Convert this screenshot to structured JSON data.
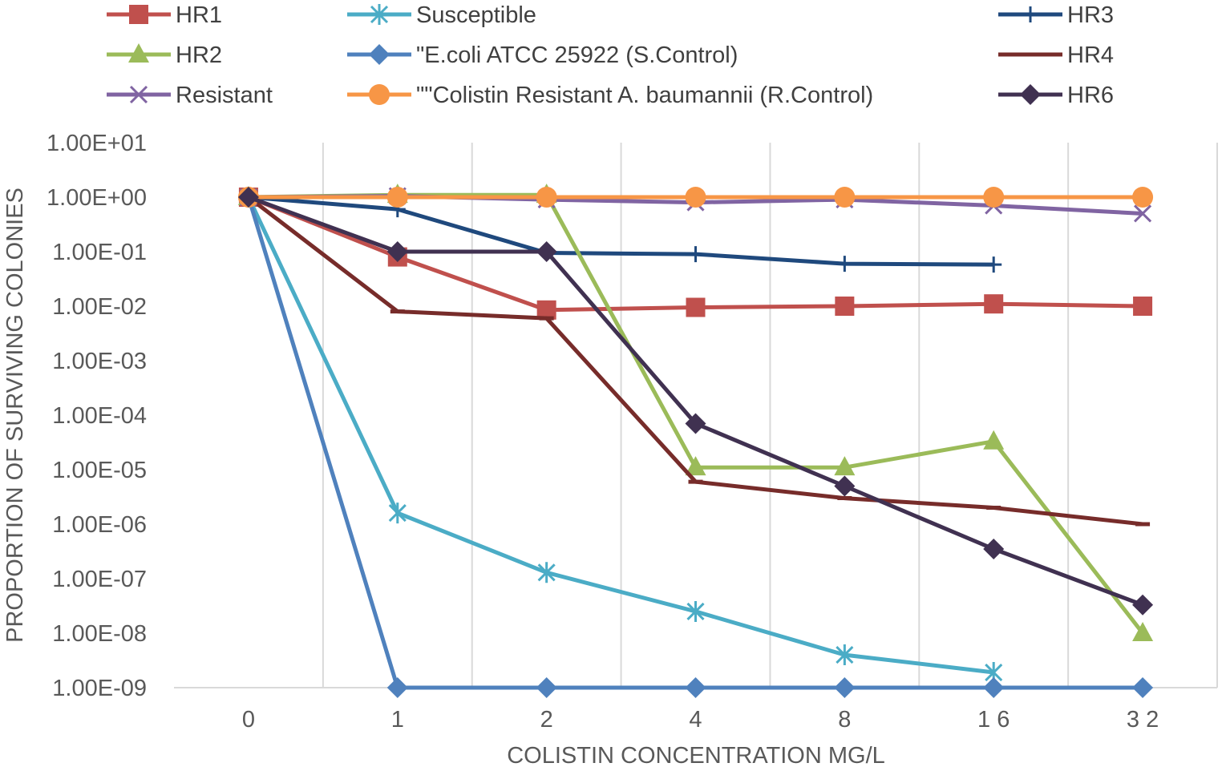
{
  "chart_data": {
    "type": "line",
    "title": "",
    "xlabel": "COLISTIN CONCENTRATION MG/L",
    "ylabel": "PROPORTION OF SURVIVING COLONIES",
    "categories": [
      "0",
      "1",
      "2",
      "4",
      "8",
      "1 6",
      "3 2"
    ],
    "y_scale": "log",
    "ylim": [
      1e-09,
      10
    ],
    "y_tick_labels": [
      "1.00E+01",
      "1.00E+00",
      "1.00E-01",
      "1.00E-02",
      "1.00E-03",
      "1.00E-04",
      "1.00E-05",
      "1.00E-06",
      "1.00E-07",
      "1.00E-08",
      "1.00E-09"
    ],
    "grid": "vertical",
    "legend_position": "top",
    "series": [
      {
        "name": "HR1",
        "color": "#C0504D",
        "marker": "square",
        "values": [
          1,
          0.08,
          0.0085,
          0.0095,
          0.01,
          0.011,
          0.01
        ]
      },
      {
        "name": "Susceptible",
        "color": "#4BACC6",
        "marker": "asterisk",
        "values": [
          1,
          1.6e-06,
          1.3e-07,
          2.5e-08,
          4e-09,
          1.9e-09,
          null
        ]
      },
      {
        "name": "HR3",
        "color": "#1F497D",
        "marker": "plus",
        "values": [
          1,
          0.6,
          0.095,
          0.09,
          0.06,
          0.058,
          null
        ]
      },
      {
        "name": "HR2",
        "color": "#9BBB59",
        "marker": "triangle",
        "values": [
          1,
          1.1,
          1.1,
          1.1e-05,
          1.1e-05,
          3.3e-05,
          1e-08
        ]
      },
      {
        "name": "\"E.coli ATCC 25922 (S.Control)",
        "color": "#4F81BD",
        "marker": "diamond",
        "values": [
          1,
          1e-09,
          1e-09,
          1e-09,
          1e-09,
          1e-09,
          1e-09
        ]
      },
      {
        "name": "HR4",
        "color": "#772C2A",
        "marker": "dash",
        "values": [
          1,
          0.008,
          0.006,
          6e-06,
          3e-06,
          2e-06,
          1e-06
        ]
      },
      {
        "name": "Resistant",
        "color": "#8064A2",
        "marker": "x",
        "values": [
          1,
          1.05,
          0.9,
          0.8,
          0.9,
          0.7,
          0.5
        ]
      },
      {
        "name": "\"\"Colistin Resistant A. baumannii (R.Control)",
        "color": "#F79646",
        "marker": "circle",
        "values": [
          1,
          1,
          1,
          1,
          1,
          1,
          1
        ]
      },
      {
        "name": "HR6",
        "color": "#403151",
        "marker": "diamond",
        "values": [
          1,
          0.1,
          0.1,
          7e-05,
          5e-06,
          3.5e-07,
          3.3e-08
        ]
      }
    ]
  }
}
